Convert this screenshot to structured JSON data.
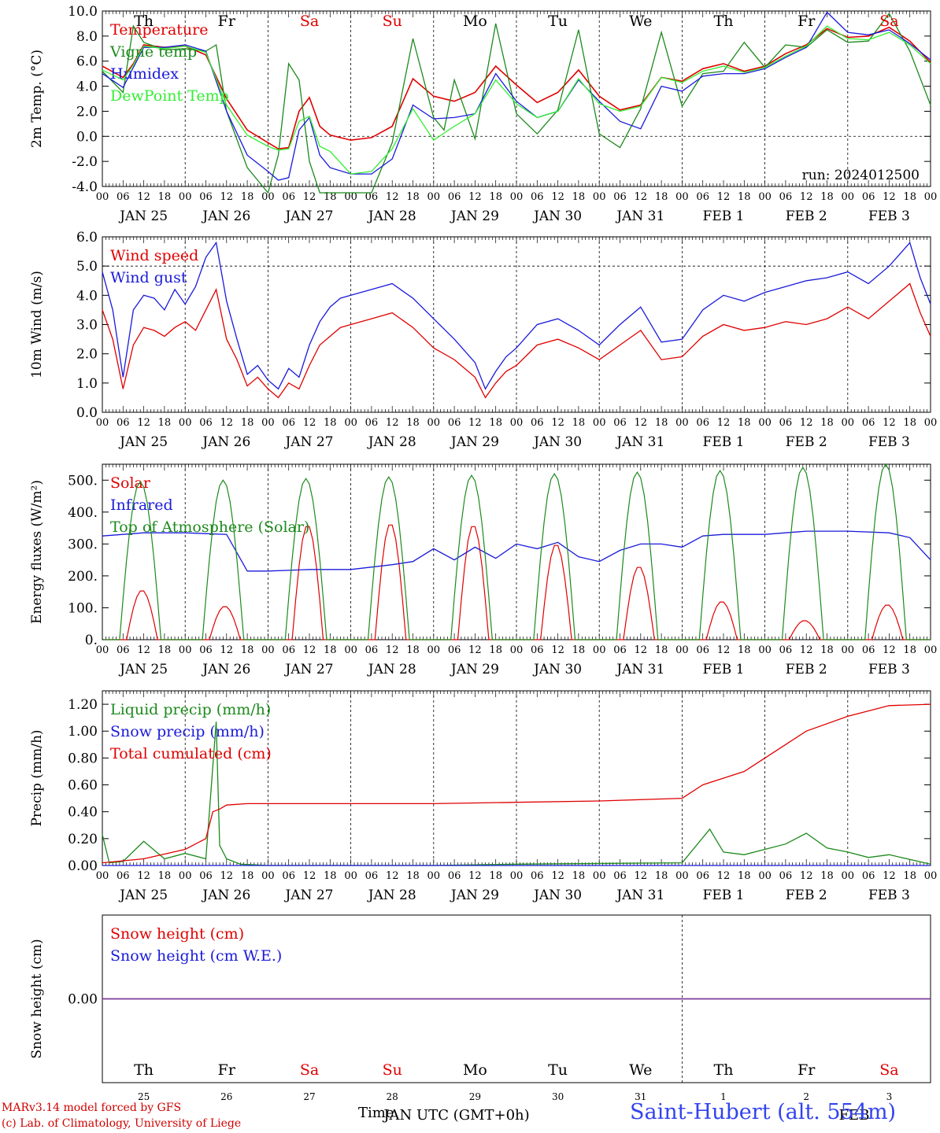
{
  "colors": {
    "temperature": "#e00000",
    "vigne": "#1c8a1c",
    "humidex": "#1a1adb",
    "dewpoint": "#33ee33",
    "weekend": "#e00000",
    "weekday": "#000000",
    "station": "#3344ee",
    "purple": "#7a3c9a"
  },
  "time_axis": {
    "hour_ticks": [
      "00",
      "06",
      "12",
      "18"
    ],
    "date_labels": [
      "JAN 25",
      "JAN 26",
      "JAN 27",
      "JAN 28",
      "JAN 29",
      "JAN 30",
      "JAN 31",
      "FEB  1",
      "FEB  2",
      "FEB  3"
    ],
    "weekdays": [
      "Th",
      "Fr",
      "Sa",
      "Su",
      "Mo",
      "Tu",
      "We",
      "Th",
      "Fr",
      "Sa"
    ],
    "weekend_flags": [
      false,
      false,
      true,
      true,
      false,
      false,
      false,
      false,
      false,
      true
    ],
    "bottom_day_numbers": [
      "25",
      "26",
      "27",
      "28",
      "29",
      "30",
      "31",
      "1",
      "2",
      "3"
    ],
    "bottom_month_label": "FEB",
    "time_label": "Time",
    "time_label_overlap": "JAN UTC (GMT+0h)"
  },
  "footer": {
    "credit_line1": "MARv3.14 model forced by GFS",
    "credit_line2": "(c) Lab. of Climatology, University of Liege",
    "station": "Saint-Hubert (alt. 554m)"
  },
  "chart_data": [
    {
      "type": "line",
      "title": "",
      "ylabel": "2m Temp. (°C)",
      "ylim": [
        -4.0,
        10.0
      ],
      "yticks": [
        "-4.0",
        "-2.0",
        "0.0",
        "2.0",
        "4.0",
        "6.0",
        "8.0",
        "10.0"
      ],
      "reference_line": 0.0,
      "annotation": "run: 2024012500",
      "x_unit": "hours since JAN 25 00 UTC",
      "series": [
        {
          "name": "Temperature",
          "color_key": "temperature",
          "x": [
            0,
            6,
            9,
            12,
            18,
            24,
            30,
            36,
            42,
            48,
            51,
            54,
            57,
            60,
            63,
            66,
            72,
            78,
            84,
            90,
            96,
            102,
            108,
            114,
            120,
            126,
            132,
            138,
            144,
            150,
            156,
            162,
            168,
            174,
            180,
            186,
            192,
            198,
            204,
            210,
            216,
            222,
            228,
            234,
            240
          ],
          "y": [
            5.6,
            4.7,
            5.8,
            7.3,
            7.1,
            7.2,
            6.5,
            3,
            0.5,
            -0.5,
            -1.0,
            -0.9,
            2,
            3.1,
            0.8,
            0.1,
            -0.3,
            -0.1,
            0.8,
            4.6,
            3.2,
            2.8,
            3.5,
            5.6,
            4.1,
            2.7,
            3.5,
            5.3,
            3.2,
            2.1,
            2.5,
            4.7,
            4.4,
            5.4,
            5.8,
            5.2,
            5.6,
            6.6,
            7.3,
            8.6,
            7.9,
            8.0,
            8.7,
            7.6,
            5.9
          ]
        },
        {
          "name": "Vigne temp",
          "color_key": "vigne",
          "x": [
            0,
            6,
            9,
            12,
            18,
            24,
            30,
            33,
            36,
            42,
            48,
            51,
            54,
            57,
            60,
            63,
            66,
            72,
            78,
            84,
            90,
            96,
            99,
            102,
            108,
            114,
            120,
            126,
            132,
            138,
            144,
            150,
            156,
            162,
            168,
            174,
            180,
            186,
            192,
            198,
            204,
            210,
            216,
            222,
            228,
            234,
            240
          ],
          "y": [
            5.2,
            3.5,
            8.8,
            7.5,
            6.9,
            7.0,
            6.8,
            7.3,
            2,
            -2.5,
            -4.5,
            -1.5,
            5.8,
            4.5,
            -2,
            -4.5,
            -4.5,
            -4.5,
            -4.5,
            -0.5,
            7.8,
            1.5,
            0.5,
            4.5,
            -0.2,
            9.0,
            1.8,
            0.2,
            2.1,
            8.5,
            0.2,
            -0.9,
            2.2,
            8.3,
            2.4,
            5.0,
            5.2,
            7.5,
            5.5,
            7.3,
            7.1,
            8.5,
            7.5,
            7.6,
            9.8,
            6.8,
            2.5
          ]
        },
        {
          "name": "Humidex",
          "color_key": "humidex",
          "x": [
            0,
            6,
            9,
            12,
            18,
            24,
            30,
            36,
            42,
            48,
            51,
            54,
            57,
            60,
            63,
            66,
            72,
            78,
            84,
            90,
            96,
            102,
            108,
            114,
            120,
            126,
            132,
            138,
            144,
            150,
            156,
            162,
            168,
            174,
            180,
            186,
            192,
            198,
            204,
            210,
            216,
            222,
            228,
            234,
            240
          ],
          "y": [
            5.0,
            3.9,
            5.5,
            7.1,
            7.1,
            7.3,
            6.8,
            2,
            -1.5,
            -2.8,
            -3.5,
            -3.3,
            0.5,
            1.5,
            -1.5,
            -2.5,
            -3.0,
            -3.0,
            -1.8,
            2.5,
            1.4,
            1.5,
            1.8,
            5.0,
            2.8,
            1.5,
            2.0,
            4.5,
            2.8,
            1.2,
            0.6,
            4.0,
            3.6,
            4.8,
            5.0,
            5.0,
            5.4,
            6.3,
            7.1,
            9.9,
            8.3,
            8.1,
            8.5,
            7.4,
            6.1
          ]
        },
        {
          "name": "DewPoint Temp",
          "color_key": "dewpoint",
          "x": [
            0,
            6,
            9,
            12,
            18,
            24,
            30,
            36,
            42,
            48,
            51,
            54,
            57,
            60,
            63,
            66,
            72,
            78,
            84,
            90,
            96,
            102,
            108,
            114,
            120,
            126,
            132,
            138,
            144,
            150,
            156,
            162,
            168,
            174,
            180,
            186,
            192,
            198,
            204,
            210,
            216,
            222,
            228,
            234,
            240
          ],
          "y": [
            5.3,
            4.5,
            5.7,
            7.2,
            7.0,
            7.2,
            6.7,
            2.5,
            0.1,
            -0.8,
            -1.1,
            -1.0,
            1.2,
            1.6,
            -0.8,
            -1.2,
            -3.0,
            -2.8,
            -1.0,
            2.2,
            -0.3,
            0.8,
            1.8,
            4.5,
            2.6,
            1.5,
            2.0,
            4.6,
            2.6,
            2.0,
            2.4,
            4.7,
            4.3,
            5.2,
            5.6,
            5.1,
            5.5,
            6.4,
            7.2,
            8.8,
            7.8,
            7.7,
            8.3,
            7.3,
            5.8
          ]
        }
      ]
    },
    {
      "type": "line",
      "title": "",
      "ylabel": "10m Wind (m/s)",
      "ylim": [
        0.0,
        6.0
      ],
      "yticks": [
        "0.0",
        "1.0",
        "2.0",
        "3.0",
        "4.0",
        "5.0",
        "6.0"
      ],
      "reference_line": 5.0,
      "series": [
        {
          "name": "Wind speed",
          "color_key": "temperature",
          "x": [
            0,
            3,
            6,
            9,
            12,
            15,
            18,
            21,
            24,
            27,
            30,
            33,
            36,
            39,
            42,
            45,
            48,
            51,
            54,
            57,
            60,
            63,
            66,
            69,
            72,
            78,
            84,
            90,
            96,
            102,
            108,
            111,
            114,
            117,
            120,
            126,
            132,
            138,
            144,
            150,
            156,
            162,
            168,
            174,
            180,
            186,
            192,
            198,
            204,
            210,
            216,
            222,
            228,
            231,
            234,
            237,
            240
          ],
          "y": [
            3.5,
            2.5,
            0.8,
            2.3,
            2.9,
            2.8,
            2.6,
            2.9,
            3.1,
            2.8,
            3.5,
            4.2,
            2.5,
            1.8,
            0.9,
            1.2,
            0.8,
            0.5,
            1.0,
            0.8,
            1.6,
            2.3,
            2.6,
            2.9,
            3.0,
            3.2,
            3.4,
            2.9,
            2.2,
            1.8,
            1.2,
            0.5,
            1.0,
            1.4,
            1.6,
            2.3,
            2.5,
            2.2,
            1.8,
            2.3,
            2.8,
            1.8,
            1.9,
            2.6,
            3.0,
            2.8,
            2.9,
            3.1,
            3.0,
            3.2,
            3.6,
            3.2,
            3.8,
            4.1,
            4.4,
            3.4,
            2.6
          ]
        },
        {
          "name": "Wind gust",
          "color_key": "humidex",
          "x": [
            0,
            3,
            6,
            9,
            12,
            15,
            18,
            21,
            24,
            27,
            30,
            33,
            36,
            39,
            42,
            45,
            48,
            51,
            54,
            57,
            60,
            63,
            66,
            69,
            72,
            78,
            84,
            90,
            96,
            102,
            108,
            111,
            114,
            117,
            120,
            126,
            132,
            138,
            144,
            150,
            156,
            162,
            168,
            174,
            180,
            186,
            192,
            198,
            204,
            210,
            216,
            222,
            228,
            231,
            234,
            237,
            240
          ],
          "y": [
            4.8,
            3.5,
            1.2,
            3.5,
            4.0,
            3.9,
            3.5,
            4.2,
            3.7,
            4.3,
            5.3,
            5.8,
            3.8,
            2.5,
            1.3,
            1.6,
            1.1,
            0.8,
            1.5,
            1.2,
            2.3,
            3.1,
            3.6,
            3.9,
            4.0,
            4.2,
            4.4,
            3.9,
            3.2,
            2.5,
            1.7,
            0.8,
            1.4,
            1.9,
            2.2,
            3.0,
            3.2,
            2.8,
            2.3,
            3.0,
            3.6,
            2.4,
            2.5,
            3.5,
            4.0,
            3.8,
            4.1,
            4.3,
            4.5,
            4.6,
            4.8,
            4.4,
            5.0,
            5.4,
            5.8,
            4.6,
            3.7
          ]
        }
      ]
    },
    {
      "type": "line",
      "title": "",
      "ylabel": "Energy fluxes (W/m²)",
      "ylim": [
        0,
        550
      ],
      "yticks": [
        "0.",
        "100.",
        "200.",
        "300.",
        "400.",
        "500."
      ],
      "series": [
        {
          "name": "Solar",
          "color_key": "temperature",
          "day_peaks": [
            155,
            105,
            360,
            365,
            360,
            300,
            230,
            120,
            60,
            110
          ]
        },
        {
          "name": "Infrared",
          "color_key": "humidex",
          "x": [
            0,
            12,
            24,
            36,
            42,
            48,
            60,
            72,
            84,
            90,
            96,
            102,
            108,
            114,
            120,
            126,
            132,
            138,
            144,
            150,
            156,
            162,
            168,
            174,
            180,
            192,
            204,
            216,
            228,
            234,
            240
          ],
          "y": [
            325,
            335,
            335,
            330,
            215,
            215,
            220,
            220,
            235,
            245,
            285,
            250,
            290,
            255,
            300,
            285,
            305,
            260,
            245,
            280,
            300,
            300,
            290,
            325,
            330,
            330,
            340,
            340,
            335,
            320,
            250
          ]
        },
        {
          "name": "Top of Atmosphere (Solar)",
          "color_key": "vigne",
          "day_peaks": [
            495,
            500,
            505,
            510,
            515,
            520,
            525,
            530,
            540,
            550
          ]
        }
      ]
    },
    {
      "type": "line",
      "title": "",
      "ylabel": "Precip (mm/h)",
      "ylim": [
        0.0,
        1.3
      ],
      "yticks": [
        "0.00",
        "0.20",
        "0.40",
        "0.60",
        "0.80",
        "1.00",
        "1.20"
      ],
      "series": [
        {
          "name": "Liquid precip (mm/h)",
          "color_key": "vigne",
          "x": [
            0,
            2,
            6,
            12,
            18,
            24,
            30,
            33,
            34,
            36,
            40,
            48,
            96,
            120,
            168,
            176,
            180,
            186,
            192,
            198,
            204,
            210,
            216,
            222,
            228,
            240
          ],
          "y": [
            0.23,
            0.02,
            0.03,
            0.18,
            0.05,
            0.09,
            0.05,
            1.07,
            0.15,
            0.05,
            0.01,
            0.0,
            0.0,
            0.01,
            0.02,
            0.27,
            0.1,
            0.08,
            0.12,
            0.16,
            0.24,
            0.13,
            0.1,
            0.06,
            0.08,
            0.01
          ]
        },
        {
          "name": "Snow precip (mm/h)",
          "color_key": "humidex",
          "x": [
            0,
            240
          ],
          "y": [
            0.0,
            0.0
          ]
        },
        {
          "name": "Total cumulated (cm)",
          "color_key": "temperature",
          "x": [
            0,
            12,
            24,
            30,
            32,
            34,
            36,
            42,
            48,
            96,
            120,
            144,
            168,
            174,
            180,
            186,
            192,
            198,
            204,
            216,
            228,
            240
          ],
          "y": [
            0.02,
            0.05,
            0.12,
            0.2,
            0.4,
            0.42,
            0.45,
            0.46,
            0.46,
            0.46,
            0.47,
            0.48,
            0.5,
            0.6,
            0.65,
            0.7,
            0.8,
            0.9,
            1.0,
            1.11,
            1.19,
            1.2
          ]
        }
      ]
    },
    {
      "type": "line",
      "title": "",
      "ylabel": "Snow height (cm)",
      "ylim": [
        -1.0,
        1.0
      ],
      "yticks": [
        "0.00"
      ],
      "series": [
        {
          "name": "Snow height (cm)",
          "color_key": "temperature",
          "x": [
            0,
            240
          ],
          "y": [
            0.0,
            0.0
          ]
        },
        {
          "name": "Snow height (cm W.E.)",
          "color_key": "humidex",
          "x": [
            0,
            240
          ],
          "y": [
            0.0,
            0.0
          ]
        }
      ]
    }
  ]
}
